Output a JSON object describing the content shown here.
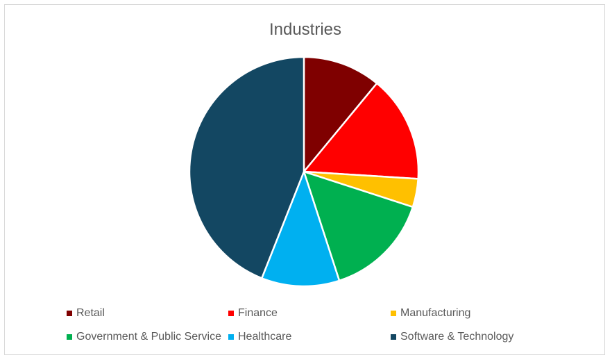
{
  "chart_data": {
    "type": "pie",
    "title": "Industries",
    "categories": [
      "Retail",
      "Finance",
      "Manufacturing",
      "Government & Public Service",
      "Healthcare",
      "Software & Technology"
    ],
    "values": [
      11,
      15,
      4,
      15,
      11,
      44
    ],
    "colors": [
      "#7f0000",
      "#ff0000",
      "#ffc000",
      "#00b050",
      "#00b0f0",
      "#134762"
    ],
    "legend_position": "bottom",
    "start_angle": "12 o'clock",
    "direction": "clockwise"
  }
}
